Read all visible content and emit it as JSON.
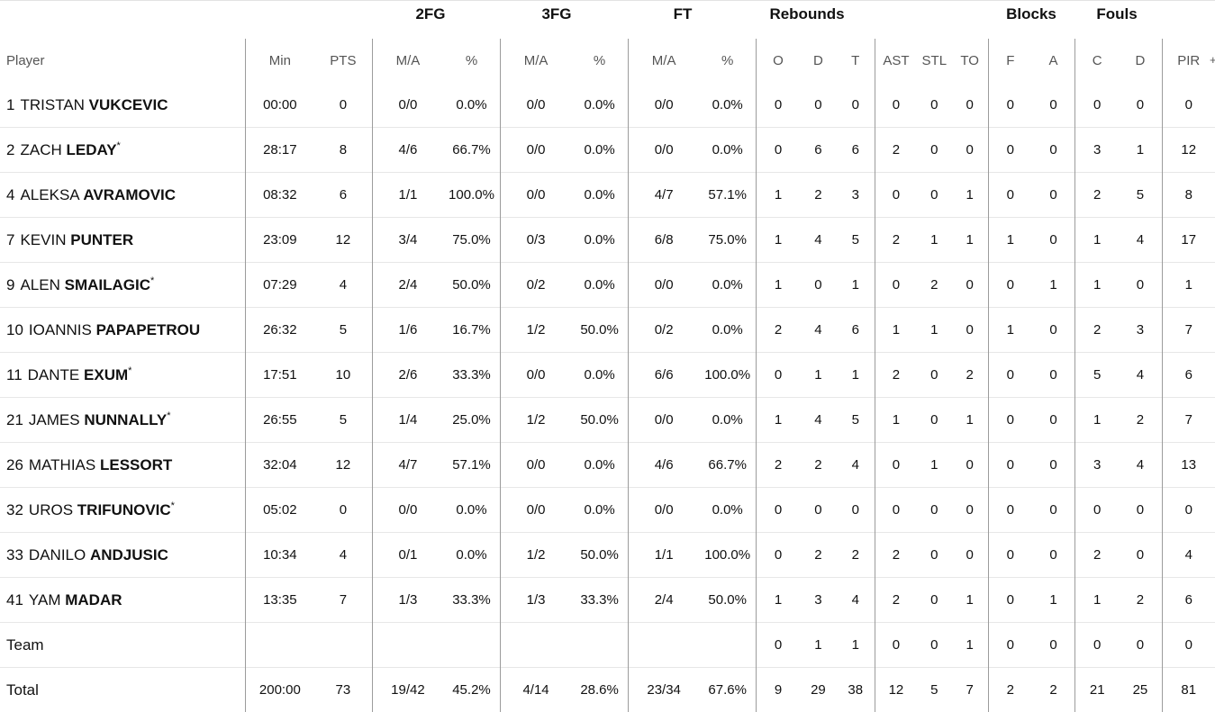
{
  "groups": {
    "fg2": "2FG",
    "fg3": "3FG",
    "ft": "FT",
    "rebounds": "Rebounds",
    "blocks": "Blocks",
    "fouls": "Fouls"
  },
  "columns": {
    "player": "Player",
    "min": "Min",
    "pts": "PTS",
    "fg2_ma": "M/A",
    "fg2_pct": "%",
    "fg3_ma": "M/A",
    "fg3_pct": "%",
    "ft_ma": "M/A",
    "ft_pct": "%",
    "reb_o": "O",
    "reb_d": "D",
    "reb_t": "T",
    "ast": "AST",
    "stl": "STL",
    "to": "TO",
    "blk_f": "F",
    "blk_a": "A",
    "foul_c": "C",
    "foul_d": "D",
    "pir": "PIR",
    "extra": "+"
  },
  "players": [
    {
      "num": "1",
      "first": "TRISTAN",
      "last": "VUKCEVIC",
      "star": "",
      "min": "00:00",
      "pts": "0",
      "fg2_ma": "0/0",
      "fg2_pct": "0.0%",
      "fg3_ma": "0/0",
      "fg3_pct": "0.0%",
      "ft_ma": "0/0",
      "ft_pct": "0.0%",
      "o": "0",
      "d": "0",
      "t": "0",
      "ast": "0",
      "stl": "0",
      "to": "0",
      "bf": "0",
      "ba": "0",
      "fc": "0",
      "fd": "0",
      "pir": "0"
    },
    {
      "num": "2",
      "first": "ZACH",
      "last": "LEDAY",
      "star": "*",
      "min": "28:17",
      "pts": "8",
      "fg2_ma": "4/6",
      "fg2_pct": "66.7%",
      "fg3_ma": "0/0",
      "fg3_pct": "0.0%",
      "ft_ma": "0/0",
      "ft_pct": "0.0%",
      "o": "0",
      "d": "6",
      "t": "6",
      "ast": "2",
      "stl": "0",
      "to": "0",
      "bf": "0",
      "ba": "0",
      "fc": "3",
      "fd": "1",
      "pir": "12"
    },
    {
      "num": "4",
      "first": "ALEKSA",
      "last": "AVRAMOVIC",
      "star": "",
      "min": "08:32",
      "pts": "6",
      "fg2_ma": "1/1",
      "fg2_pct": "100.0%",
      "fg3_ma": "0/0",
      "fg3_pct": "0.0%",
      "ft_ma": "4/7",
      "ft_pct": "57.1%",
      "o": "1",
      "d": "2",
      "t": "3",
      "ast": "0",
      "stl": "0",
      "to": "1",
      "bf": "0",
      "ba": "0",
      "fc": "2",
      "fd": "5",
      "pir": "8"
    },
    {
      "num": "7",
      "first": "KEVIN",
      "last": "PUNTER",
      "star": "",
      "min": "23:09",
      "pts": "12",
      "fg2_ma": "3/4",
      "fg2_pct": "75.0%",
      "fg3_ma": "0/3",
      "fg3_pct": "0.0%",
      "ft_ma": "6/8",
      "ft_pct": "75.0%",
      "o": "1",
      "d": "4",
      "t": "5",
      "ast": "2",
      "stl": "1",
      "to": "1",
      "bf": "1",
      "ba": "0",
      "fc": "1",
      "fd": "4",
      "pir": "17"
    },
    {
      "num": "9",
      "first": "ALEN",
      "last": "SMAILAGIC",
      "star": "*",
      "min": "07:29",
      "pts": "4",
      "fg2_ma": "2/4",
      "fg2_pct": "50.0%",
      "fg3_ma": "0/2",
      "fg3_pct": "0.0%",
      "ft_ma": "0/0",
      "ft_pct": "0.0%",
      "o": "1",
      "d": "0",
      "t": "1",
      "ast": "0",
      "stl": "2",
      "to": "0",
      "bf": "0",
      "ba": "1",
      "fc": "1",
      "fd": "0",
      "pir": "1"
    },
    {
      "num": "10",
      "first": "IOANNIS",
      "last": "PAPAPETROU",
      "star": "",
      "min": "26:32",
      "pts": "5",
      "fg2_ma": "1/6",
      "fg2_pct": "16.7%",
      "fg3_ma": "1/2",
      "fg3_pct": "50.0%",
      "ft_ma": "0/2",
      "ft_pct": "0.0%",
      "o": "2",
      "d": "4",
      "t": "6",
      "ast": "1",
      "stl": "1",
      "to": "0",
      "bf": "1",
      "ba": "0",
      "fc": "2",
      "fd": "3",
      "pir": "7"
    },
    {
      "num": "11",
      "first": "DANTE",
      "last": "EXUM",
      "star": "*",
      "min": "17:51",
      "pts": "10",
      "fg2_ma": "2/6",
      "fg2_pct": "33.3%",
      "fg3_ma": "0/0",
      "fg3_pct": "0.0%",
      "ft_ma": "6/6",
      "ft_pct": "100.0%",
      "o": "0",
      "d": "1",
      "t": "1",
      "ast": "2",
      "stl": "0",
      "to": "2",
      "bf": "0",
      "ba": "0",
      "fc": "5",
      "fd": "4",
      "pir": "6"
    },
    {
      "num": "21",
      "first": "JAMES",
      "last": "NUNNALLY",
      "star": "*",
      "min": "26:55",
      "pts": "5",
      "fg2_ma": "1/4",
      "fg2_pct": "25.0%",
      "fg3_ma": "1/2",
      "fg3_pct": "50.0%",
      "ft_ma": "0/0",
      "ft_pct": "0.0%",
      "o": "1",
      "d": "4",
      "t": "5",
      "ast": "1",
      "stl": "0",
      "to": "1",
      "bf": "0",
      "ba": "0",
      "fc": "1",
      "fd": "2",
      "pir": "7"
    },
    {
      "num": "26",
      "first": "MATHIAS",
      "last": "LESSORT",
      "star": "",
      "min": "32:04",
      "pts": "12",
      "fg2_ma": "4/7",
      "fg2_pct": "57.1%",
      "fg3_ma": "0/0",
      "fg3_pct": "0.0%",
      "ft_ma": "4/6",
      "ft_pct": "66.7%",
      "o": "2",
      "d": "2",
      "t": "4",
      "ast": "0",
      "stl": "1",
      "to": "0",
      "bf": "0",
      "ba": "0",
      "fc": "3",
      "fd": "4",
      "pir": "13"
    },
    {
      "num": "32",
      "first": "UROS",
      "last": "TRIFUNOVIC",
      "star": "*",
      "min": "05:02",
      "pts": "0",
      "fg2_ma": "0/0",
      "fg2_pct": "0.0%",
      "fg3_ma": "0/0",
      "fg3_pct": "0.0%",
      "ft_ma": "0/0",
      "ft_pct": "0.0%",
      "o": "0",
      "d": "0",
      "t": "0",
      "ast": "0",
      "stl": "0",
      "to": "0",
      "bf": "0",
      "ba": "0",
      "fc": "0",
      "fd": "0",
      "pir": "0"
    },
    {
      "num": "33",
      "first": "DANILO",
      "last": "ANDJUSIC",
      "star": "",
      "min": "10:34",
      "pts": "4",
      "fg2_ma": "0/1",
      "fg2_pct": "0.0%",
      "fg3_ma": "1/2",
      "fg3_pct": "50.0%",
      "ft_ma": "1/1",
      "ft_pct": "100.0%",
      "o": "0",
      "d": "2",
      "t": "2",
      "ast": "2",
      "stl": "0",
      "to": "0",
      "bf": "0",
      "ba": "0",
      "fc": "2",
      "fd": "0",
      "pir": "4"
    },
    {
      "num": "41",
      "first": "YAM",
      "last": "MADAR",
      "star": "",
      "min": "13:35",
      "pts": "7",
      "fg2_ma": "1/3",
      "fg2_pct": "33.3%",
      "fg3_ma": "1/3",
      "fg3_pct": "33.3%",
      "ft_ma": "2/4",
      "ft_pct": "50.0%",
      "o": "1",
      "d": "3",
      "t": "4",
      "ast": "2",
      "stl": "0",
      "to": "1",
      "bf": "0",
      "ba": "1",
      "fc": "1",
      "fd": "2",
      "pir": "6"
    }
  ],
  "team": {
    "label": "Team",
    "o": "0",
    "d": "1",
    "t": "1",
    "ast": "0",
    "stl": "0",
    "to": "1",
    "bf": "0",
    "ba": "0",
    "fc": "0",
    "fd": "0",
    "pir": "0"
  },
  "total": {
    "label": "Total",
    "min": "200:00",
    "pts": "73",
    "fg2_ma": "19/42",
    "fg2_pct": "45.2%",
    "fg3_ma": "4/14",
    "fg3_pct": "28.6%",
    "ft_ma": "23/34",
    "ft_pct": "67.6%",
    "o": "9",
    "d": "29",
    "t": "38",
    "ast": "12",
    "stl": "5",
    "to": "7",
    "bf": "2",
    "ba": "2",
    "fc": "21",
    "fd": "25",
    "pir": "81"
  }
}
